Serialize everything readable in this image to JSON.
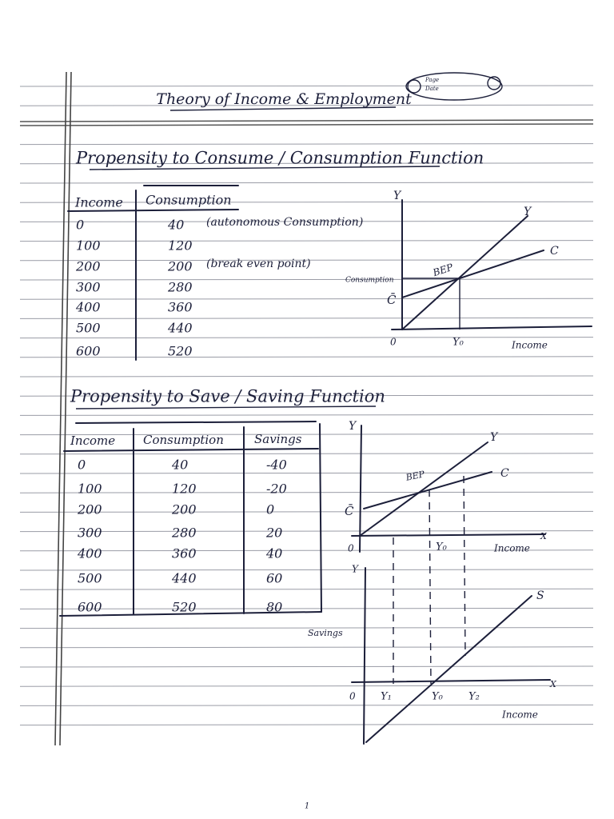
{
  "header": {
    "title": "Theory of Income & Employment",
    "stamp": [
      "Page",
      "Date"
    ]
  },
  "consumption_section": {
    "heading": "Propensity to Consume / Consumption Function",
    "columns": [
      "Income",
      "Consumption"
    ],
    "rows": [
      {
        "income": 0,
        "consumption": 40,
        "note": "(autonomous Consumption)"
      },
      {
        "income": 100,
        "consumption": 120
      },
      {
        "income": 200,
        "consumption": 200,
        "note": "(break even point)"
      },
      {
        "income": 300,
        "consumption": 280
      },
      {
        "income": 400,
        "consumption": 360
      },
      {
        "income": 500,
        "consumption": 440
      },
      {
        "income": 600,
        "consumption": 520
      }
    ],
    "graph": {
      "y_axis": "Y",
      "line_y": "Y",
      "line_c": "C",
      "bep": "BEP",
      "y_label": "Consumption",
      "c_bar": "C̄",
      "origin": "0",
      "y0": "Y₀",
      "x_label": "Income"
    }
  },
  "saving_section": {
    "heading": "Propensity to Save / Saving Function",
    "columns": [
      "Income",
      "Consumption",
      "Savings"
    ],
    "rows": [
      {
        "income": 0,
        "consumption": 40,
        "savings": -40
      },
      {
        "income": 100,
        "consumption": 120,
        "savings": -20
      },
      {
        "income": 200,
        "consumption": 200,
        "savings": 0
      },
      {
        "income": 300,
        "consumption": 280,
        "savings": 20
      },
      {
        "income": 400,
        "consumption": 360,
        "savings": 40
      },
      {
        "income": 500,
        "consumption": 440,
        "savings": 60
      },
      {
        "income": 600,
        "consumption": 520,
        "savings": 80
      }
    ],
    "upper_graph": {
      "y_axis": "Y",
      "line_y": "Y",
      "line_c": "C",
      "bep": "BEP",
      "c_bar": "C̄",
      "origin": "0",
      "y0": "Y₀",
      "x_label": "Income",
      "x_axis": "X"
    },
    "lower_graph": {
      "y_axis": "Y",
      "line_s": "S",
      "y_label": "Savings",
      "origin": "0",
      "y1": "Y₁",
      "y0": "Y₀",
      "y2": "Y₂",
      "x_axis": "X",
      "x_label": "Income"
    }
  },
  "footer": {
    "page_number": "1"
  }
}
